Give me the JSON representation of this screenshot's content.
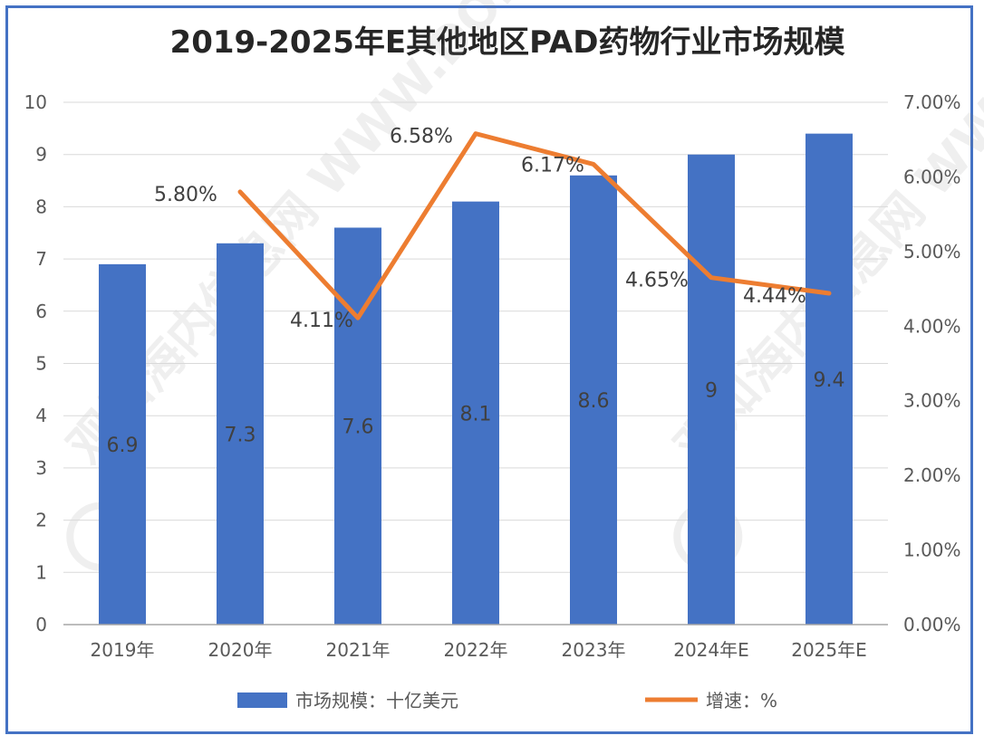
{
  "chart_data": {
    "type": "bar",
    "title": "2019-2025年E其他地区PAD药物行业市场规模",
    "categories": [
      "2019年",
      "2020年",
      "2021年",
      "2022年",
      "2023年",
      "2024年E",
      "2025年E"
    ],
    "series": [
      {
        "name": "市场规模：十亿美元",
        "type": "bar",
        "axis": "left",
        "values": [
          6.9,
          7.3,
          7.6,
          8.1,
          8.6,
          9,
          9.4
        ],
        "labels": [
          "6.9",
          "7.3",
          "7.6",
          "8.1",
          "8.6",
          "9",
          "9.4"
        ],
        "color": "#4472c4"
      },
      {
        "name": "增速：%",
        "type": "line",
        "axis": "right",
        "values": [
          null,
          5.8,
          4.11,
          6.58,
          6.17,
          4.65,
          4.44
        ],
        "labels": [
          "",
          "5.80%",
          "4.11%",
          "6.58%",
          "6.17%",
          "4.65%",
          "4.44%"
        ],
        "color": "#ed7d31"
      }
    ],
    "yleft": {
      "range": [
        0,
        10
      ],
      "ticks": [
        0,
        1,
        2,
        3,
        4,
        5,
        6,
        7,
        8,
        9,
        10
      ],
      "tick_labels": [
        "0",
        "1",
        "2",
        "3",
        "4",
        "5",
        "6",
        "7",
        "8",
        "9",
        "10"
      ]
    },
    "yright": {
      "range": [
        0,
        7
      ],
      "ticks": [
        0,
        1,
        2,
        3,
        4,
        5,
        6,
        7
      ],
      "tick_labels": [
        "0.00%",
        "1.00%",
        "2.00%",
        "3.00%",
        "4.00%",
        "5.00%",
        "6.00%",
        "7.00%"
      ]
    },
    "grid": true,
    "legend": "bottom",
    "legend_entries": [
      "市场规模：十亿美元",
      "增速：%"
    ],
    "watermark": "观知海内信息网 WWW.DONGFANGDB.COM"
  }
}
